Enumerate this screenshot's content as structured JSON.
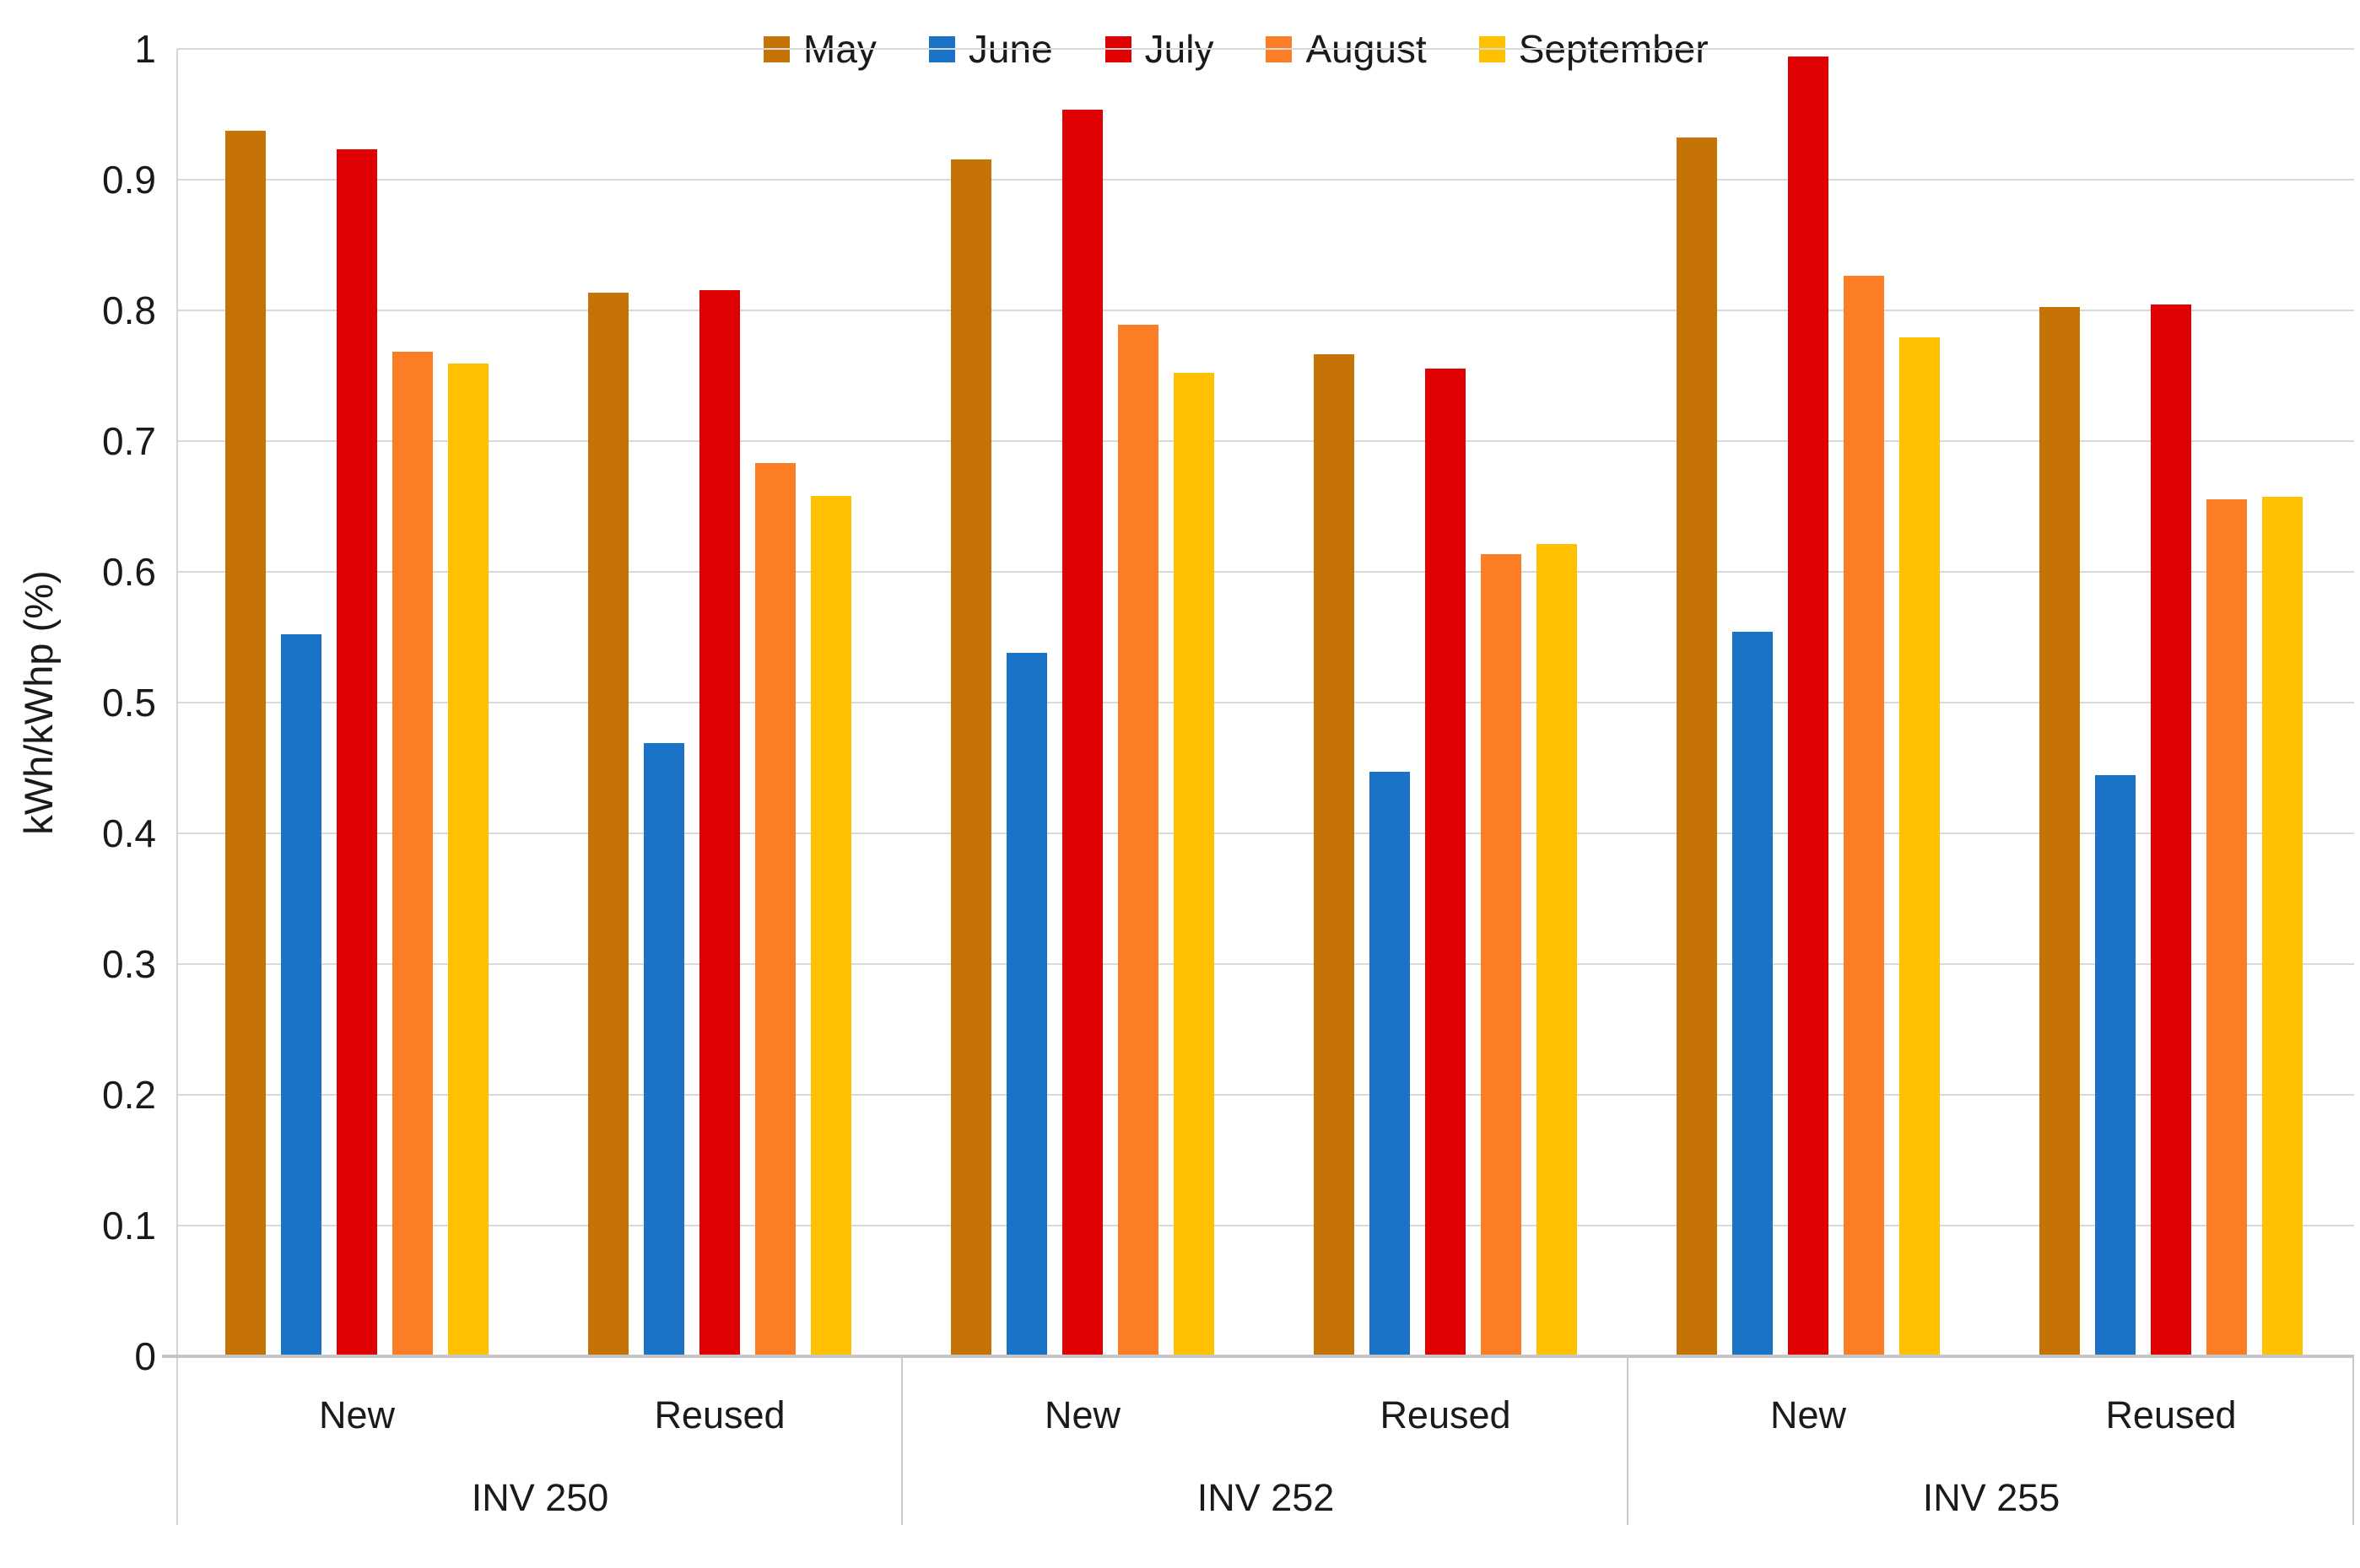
{
  "page": {
    "background": "#ffffff"
  },
  "chart_data": {
    "type": "bar",
    "title": "",
    "xlabel": "",
    "ylabel": "kWh/kWhp (%)",
    "ylim": [
      0,
      1
    ],
    "grid": true,
    "legend_position": "top",
    "ytick_values": [
      0,
      0.1,
      0.2,
      0.3,
      0.4,
      0.5,
      0.6,
      0.7,
      0.8,
      0.9,
      1
    ],
    "ytick_labels": [
      "0",
      "0.1",
      "0.2",
      "0.3",
      "0.4",
      "0.5",
      "0.6",
      "0.7",
      "0.8",
      "0.9",
      "1"
    ],
    "groups": [
      {
        "label": "INV 250",
        "subgroups": [
          "New",
          "Reused"
        ]
      },
      {
        "label": "INV 252",
        "subgroups": [
          "New",
          "Reused"
        ]
      },
      {
        "label": "INV 255",
        "subgroups": [
          "New",
          "Reused"
        ]
      }
    ],
    "columns": [
      "INV 250 New",
      "INV 250 Reused",
      "INV 252 New",
      "INV 252 Reused",
      "INV 255 New",
      "INV 255 Reused"
    ],
    "series": [
      {
        "name": "May",
        "color": "#C67306",
        "values": [
          0.936,
          0.812,
          0.914,
          0.765,
          0.931,
          0.801
        ]
      },
      {
        "name": "June",
        "color": "#1B73C8",
        "values": [
          0.551,
          0.468,
          0.537,
          0.446,
          0.553,
          0.443
        ]
      },
      {
        "name": "July",
        "color": "#E00202",
        "values": [
          0.922,
          0.814,
          0.952,
          0.754,
          0.993,
          0.803
        ]
      },
      {
        "name": "August",
        "color": "#FB7D25",
        "values": [
          0.767,
          0.682,
          0.788,
          0.612,
          0.825,
          0.654
        ]
      },
      {
        "name": "September",
        "color": "#FFC000",
        "values": [
          0.758,
          0.657,
          0.751,
          0.62,
          0.778,
          0.656
        ]
      }
    ],
    "colors": {
      "gridline": "#d9d9d9",
      "axis_line": "#c6c6c6",
      "divider": "#c9c9c9",
      "text": "#1a1a1a"
    }
  }
}
